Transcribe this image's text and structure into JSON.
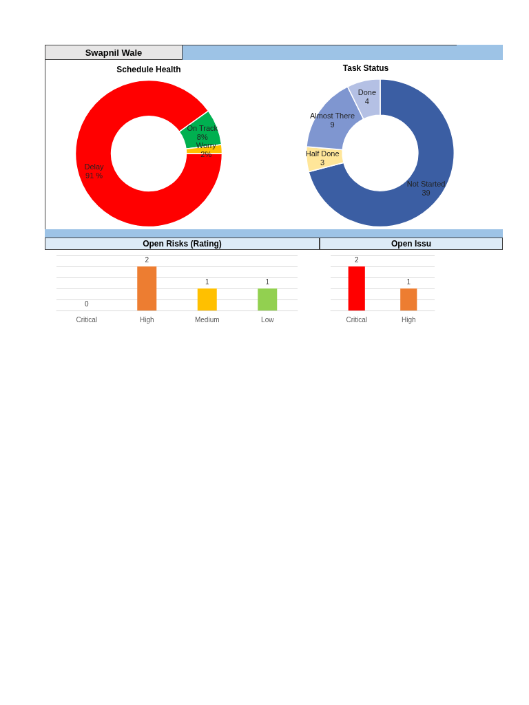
{
  "chart_data": [
    {
      "type": "donut",
      "title": "Schedule Health",
      "annotations": [
        "Swapnil Wale"
      ],
      "categories": [
        "Delay",
        "On Track",
        "Worry"
      ],
      "values": [
        91,
        8,
        2
      ],
      "colors": [
        "#ff0000",
        "#00b050",
        "#ffc000"
      ],
      "value_labels": [
        "91 %",
        "8%",
        "2%"
      ]
    },
    {
      "type": "donut",
      "title": "Task Status",
      "categories": [
        "Not Started",
        "Half Done",
        "Almost There",
        "Done"
      ],
      "values": [
        39,
        3,
        9,
        4
      ],
      "colors": [
        "#3b5ea3",
        "#ffe699",
        "#7f96d0",
        "#b4c0e4"
      ],
      "data_labels": true
    },
    {
      "type": "bar",
      "title": "Open Risks (Rating)",
      "categories": [
        "Critical",
        "High",
        "Medium",
        "Low"
      ],
      "values": [
        0,
        2,
        1,
        1
      ],
      "colors": [
        "#ff0000",
        "#ed7d31",
        "#ffc000",
        "#92d050"
      ],
      "data_labels": true,
      "ylim": [
        0,
        2.5
      ],
      "yticks": [
        0,
        0.5,
        1,
        1.5,
        2,
        2.5
      ],
      "grid": "y",
      "tick_labels": "x"
    },
    {
      "type": "bar",
      "title": "Open Issu",
      "categories": [
        "Critical",
        "High"
      ],
      "values": [
        2,
        1
      ],
      "colors": [
        "#ff0000",
        "#ed7d31"
      ],
      "data_labels": true,
      "ylim": [
        0,
        2.5
      ],
      "yticks": [
        0,
        0.5,
        1,
        1.5,
        2,
        2.5
      ],
      "grid": "y",
      "tick_labels": "x"
    }
  ]
}
